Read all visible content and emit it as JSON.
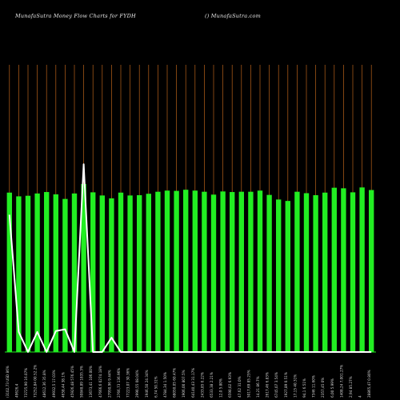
{
  "header": {
    "left": "MunafaSutra  Money Flow  Charts for FYDH",
    "right": "() MunafaSutra.com"
  },
  "chart_data": {
    "type": "bar",
    "title": "MunafaSutra  Money Flow  Charts for FYDH",
    "subtitle": "() MunafaSutra.com",
    "bar_color": "#22ee22",
    "line_color": "#ffffff",
    "grid_color": "#b8621a",
    "background": "#000000",
    "ylim": [
      0,
      100
    ],
    "values": [
      55.5,
      54.2,
      54.4,
      55.2,
      55.7,
      54.9,
      53.3,
      55.2,
      58.5,
      55.6,
      54.5,
      53.5,
      55.5,
      54.5,
      54.6,
      55.1,
      55.8,
      56.2,
      56.1,
      56.5,
      56.2,
      55.8,
      54.8,
      55.9,
      55.7,
      55.8,
      55.8,
      56.2,
      54.7,
      53.1,
      52.6,
      55.8,
      55.3,
      54.6,
      55.5,
      57.2,
      57.0,
      55.6,
      57.3,
      56.4
    ],
    "flow_values": [
      47.8,
      7,
      0,
      7,
      0,
      7.3,
      7.9,
      0,
      65.4,
      0,
      0,
      5,
      0,
      0,
      0,
      0,
      0,
      0,
      0,
      0,
      0,
      0,
      0,
      0,
      0,
      0,
      0,
      0,
      0,
      0,
      0,
      0,
      0,
      0,
      0,
      0,
      0,
      0,
      0,
      0
    ],
    "x_labels": [
      "(3102,73 USD 86%",
      "49626,4",
      "73725,90 16.07%",
      "73252,84 00.52.2%",
      "48612,36 35.8%",
      "49932,5 17.03%",
      "4658,44 38.1%",
      "45926,48 576.45%",
      "50848,89 1835.3%",
      "13673,41 106.00%",
      "47666,6 0274.18%",
      "27950,96 9.44%",
      "2766,73 136.96%",
      "77223,07 30.36%",
      "2990,55 08.04%",
      "1946,50 24.34%",
      "6,74 50.31%",
      "4784,34 1.50%",
      "68050,05 60.47%",
      "1906,00 807.5%",
      "64140,43 31.17%",
      "2433,85 0.22%",
      "6533,38 2.21%",
      "12,0 5.80%",
      "6590,02 6.93%",
      "47,62 31.0%",
      "5017,69 85.25%",
      "14,21 86.7%",
      "2617,46 6.83%",
      "6745,07 3.54%",
      "1927,89 0.51%",
      "17,15 40.31%",
      "94,1 6.51%",
      "7346 11.60%",
      "2357,45 0%",
      "6,00 5.99%",
      "1408,24 7,001.27%",
      "2,94 85.27%",
      "4",
      "28865,47 0.80%"
    ]
  }
}
